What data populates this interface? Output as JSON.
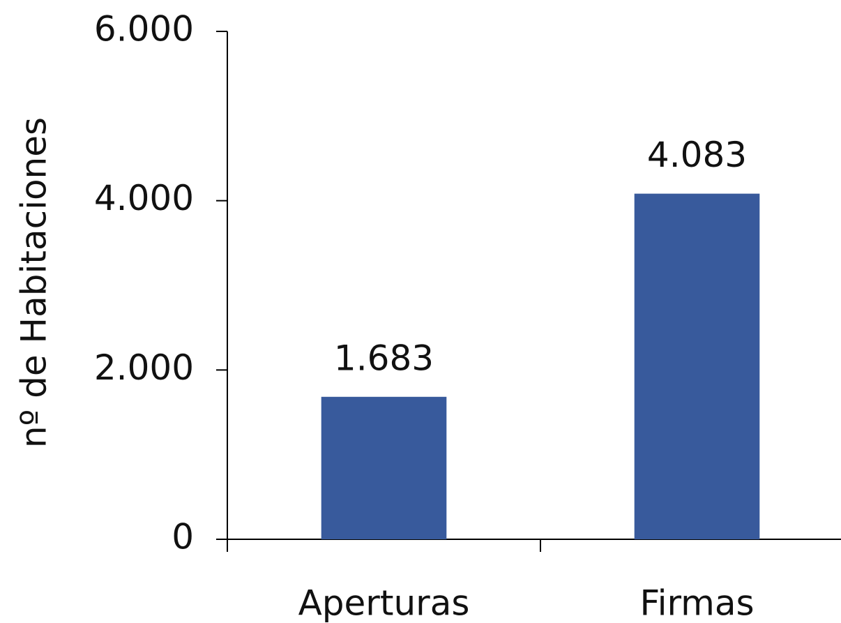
{
  "chart_data": {
    "type": "bar",
    "y_axis_title": "nº de Habitaciones",
    "categories": [
      "Aperturas",
      "Firmas"
    ],
    "values": [
      1683,
      4083
    ],
    "value_labels": [
      "1.683",
      "4.083"
    ],
    "color": "#385a9c",
    "ylim": [
      0,
      6000
    ],
    "yticks": [
      {
        "value": 0,
        "label": "0"
      },
      {
        "value": 2000,
        "label": "2.000"
      },
      {
        "value": 4000,
        "label": "4.000"
      },
      {
        "value": 6000,
        "label": "6.000"
      }
    ],
    "grid": false
  }
}
